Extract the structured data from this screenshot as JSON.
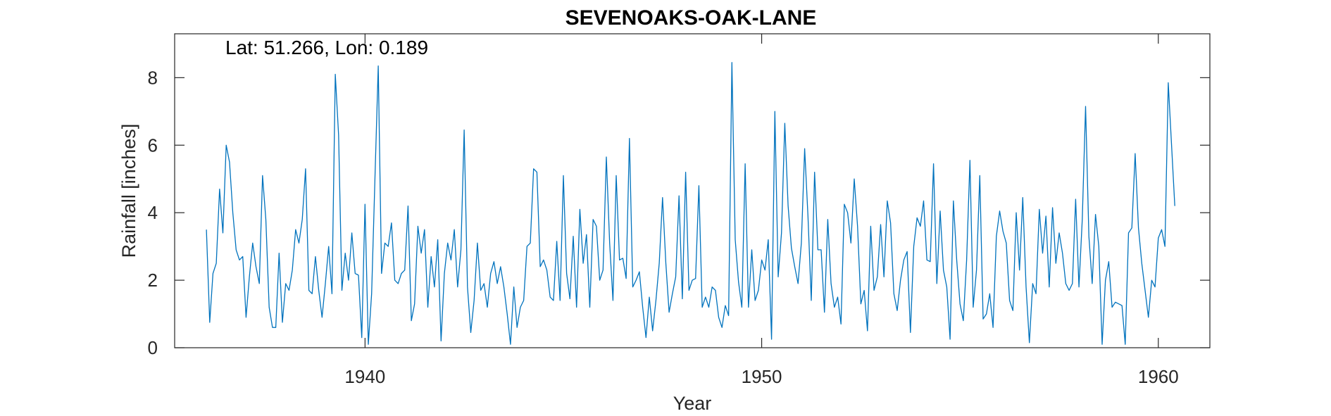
{
  "chart_data": {
    "type": "line",
    "title": "SEVENOAKS-OAK-LANE",
    "xlabel": "Year",
    "ylabel": "Rainfall [inches]",
    "annotation": "Lat: 51.266, Lon: 0.189",
    "xlim": [
      1935.2,
      1961.3
    ],
    "ylim": [
      0,
      9.3
    ],
    "xticks": [
      1940,
      1950,
      1960
    ],
    "yticks": [
      0,
      2,
      4,
      6,
      8
    ],
    "grid": false,
    "line_color": "#0072BD",
    "series": [
      {
        "x_start": 1936.0,
        "x_step": 0.0833333,
        "values": [
          3.5,
          0.75,
          2.2,
          2.5,
          4.7,
          3.4,
          6.0,
          5.5,
          4.0,
          2.9,
          2.6,
          2.7,
          0.9,
          2.1,
          3.1,
          2.4,
          1.9,
          5.1,
          3.8,
          1.2,
          0.6,
          0.6,
          2.8,
          0.75,
          1.9,
          1.7,
          2.3,
          3.5,
          3.1,
          3.8,
          5.3,
          1.7,
          1.6,
          2.7,
          1.7,
          0.9,
          1.9,
          3.0,
          1.6,
          8.1,
          6.3,
          1.7,
          2.8,
          2.0,
          3.4,
          2.2,
          2.15,
          0.3,
          4.25,
          0.1,
          1.6,
          5.0,
          8.35,
          2.2,
          3.1,
          3.0,
          3.7,
          2.0,
          1.9,
          2.2,
          2.3,
          4.2,
          0.8,
          1.3,
          3.6,
          2.8,
          3.5,
          1.2,
          2.7,
          1.8,
          3.2,
          0.2,
          2.2,
          3.1,
          2.6,
          3.5,
          1.8,
          2.9,
          6.45,
          1.8,
          0.45,
          1.4,
          3.1,
          1.7,
          1.9,
          1.2,
          2.2,
          2.55,
          1.9,
          2.4,
          1.8,
          1.0,
          0.1,
          1.8,
          0.6,
          1.2,
          1.4,
          3.0,
          3.1,
          5.3,
          5.2,
          2.4,
          2.6,
          2.3,
          1.5,
          1.4,
          3.15,
          1.4,
          5.1,
          2.2,
          1.45,
          3.3,
          1.2,
          4.1,
          2.5,
          3.35,
          1.2,
          3.8,
          3.6,
          2.0,
          2.3,
          5.65,
          3.1,
          1.4,
          5.1,
          2.6,
          2.65,
          2.05,
          6.2,
          1.8,
          2.0,
          2.25,
          1.2,
          0.3,
          1.5,
          0.5,
          1.4,
          2.5,
          4.45,
          2.5,
          1.05,
          1.6,
          2.1,
          4.5,
          1.45,
          5.2,
          1.7,
          2.0,
          2.05,
          4.8,
          1.2,
          1.5,
          1.2,
          1.8,
          1.7,
          0.9,
          0.6,
          1.25,
          0.95,
          8.45,
          3.2,
          1.95,
          1.2,
          5.45,
          1.2,
          2.9,
          1.4,
          1.7,
          2.6,
          2.3,
          3.2,
          0.25,
          7.0,
          2.1,
          3.4,
          6.65,
          4.2,
          2.95,
          2.4,
          1.9,
          3.1,
          5.9,
          3.9,
          1.4,
          5.2,
          2.9,
          2.9,
          1.05,
          3.8,
          1.9,
          1.2,
          1.5,
          0.7,
          4.25,
          4.0,
          3.1,
          5.0,
          3.6,
          1.3,
          1.7,
          0.5,
          3.6,
          1.7,
          2.1,
          3.65,
          2.1,
          4.35,
          3.7,
          1.6,
          1.1,
          2.0,
          2.6,
          2.85,
          0.45,
          3.0,
          3.85,
          3.6,
          4.35,
          2.6,
          2.55,
          5.45,
          1.9,
          4.05,
          2.3,
          1.8,
          0.25,
          4.35,
          2.6,
          1.3,
          0.8,
          2.6,
          5.55,
          1.2,
          2.3,
          5.1,
          0.85,
          1.0,
          1.6,
          0.6,
          3.3,
          4.05,
          3.45,
          3.1,
          1.4,
          1.1,
          4.0,
          2.3,
          4.45,
          1.8,
          0.15,
          1.9,
          1.6,
          4.1,
          2.8,
          3.9,
          1.8,
          4.15,
          2.5,
          3.4,
          2.8,
          1.9,
          1.7,
          1.9,
          4.4,
          1.8,
          3.8,
          7.15,
          3.3,
          1.9,
          3.95,
          3.0,
          0.1,
          2.0,
          2.55,
          1.2,
          1.35,
          1.3,
          1.25,
          0.1,
          3.4,
          3.55,
          5.75,
          3.55,
          2.5,
          1.7,
          0.9,
          2.0,
          1.8,
          3.25,
          3.5,
          3.0,
          7.85,
          6.0,
          4.2
        ]
      }
    ]
  }
}
